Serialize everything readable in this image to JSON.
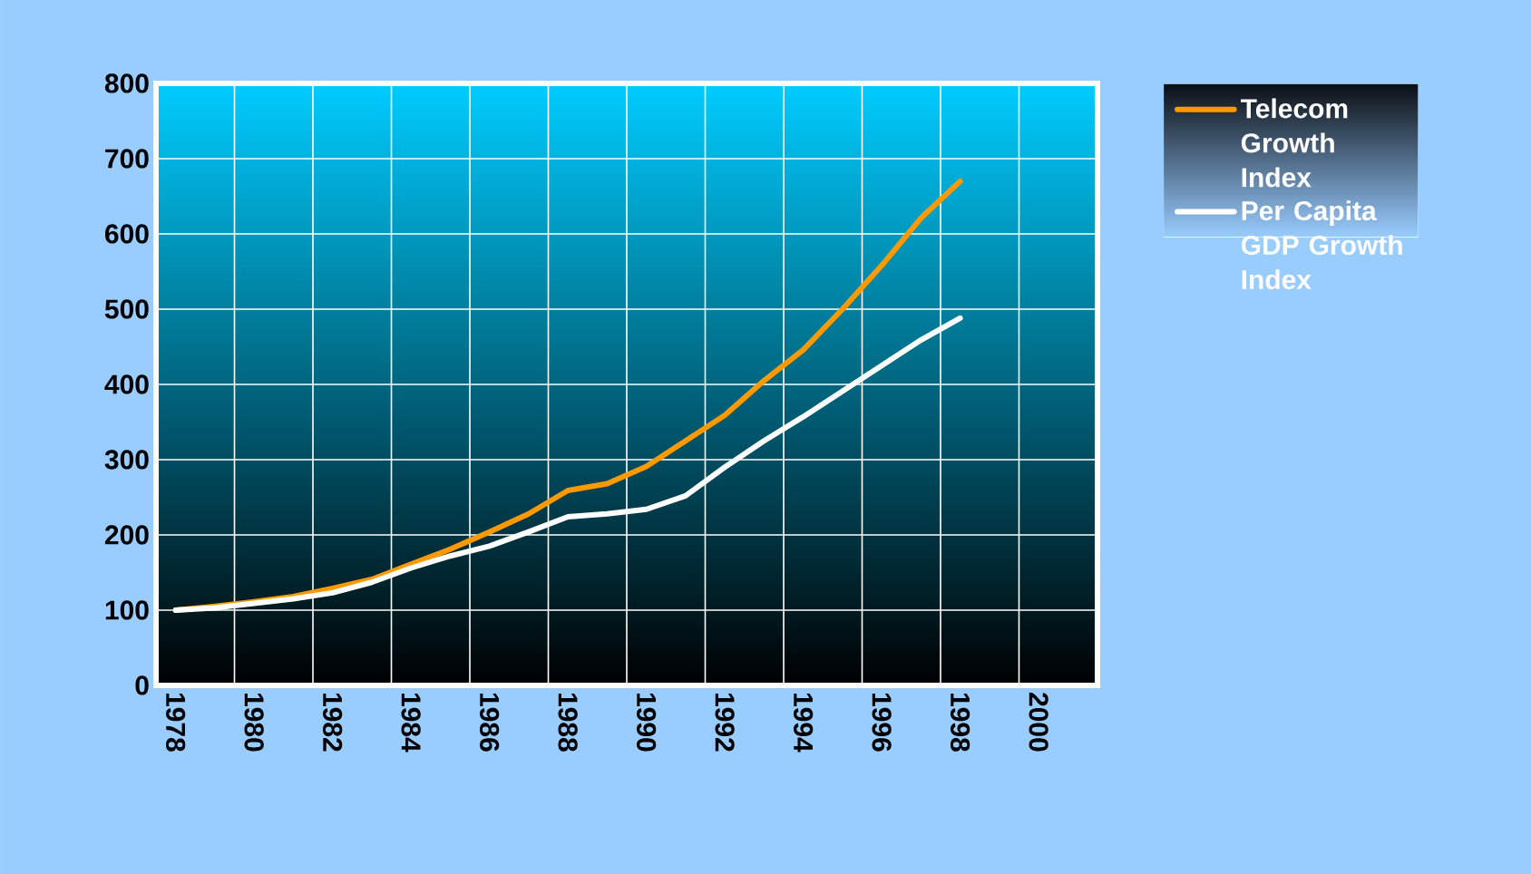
{
  "chart_data": {
    "type": "line",
    "categories": [
      "1978",
      null,
      "1980",
      null,
      "1982",
      null,
      "1984",
      null,
      "1986",
      null,
      "1988",
      null,
      "1990",
      null,
      "1992",
      null,
      "1994",
      null,
      "1996",
      null,
      "1998",
      null,
      "2000",
      null
    ],
    "series": [
      {
        "name": "Telecom Growth Index",
        "color": "#ff9900",
        "values": [
          100,
          105,
          111,
          118,
          129,
          141,
          161,
          181,
          204,
          228,
          259,
          268,
          291,
          325,
          359,
          405,
          446,
          500,
          558,
          621,
          670,
          null,
          null,
          null
        ]
      },
      {
        "name": "Per Capita GDP Growth Index",
        "color": "#ffffff",
        "values": [
          100,
          103,
          109,
          115,
          123,
          137,
          156,
          172,
          185,
          204,
          224,
          228,
          234,
          252,
          290,
          325,
          357,
          391,
          425,
          459,
          488,
          null,
          null,
          null
        ]
      }
    ],
    "ylim": [
      0,
      800
    ],
    "yticks": [
      0,
      100,
      200,
      300,
      400,
      500,
      600,
      700,
      800
    ],
    "grid": true,
    "legend": "right"
  }
}
